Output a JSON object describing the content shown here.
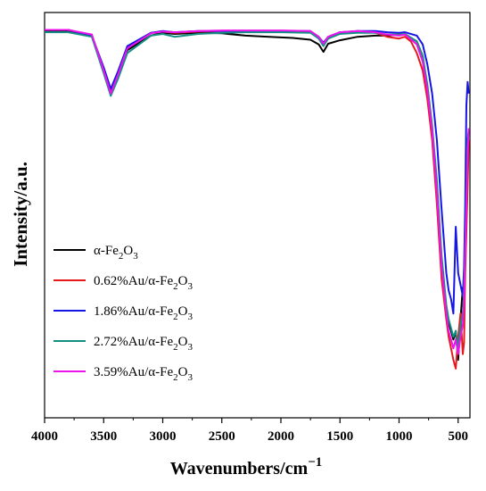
{
  "chart_data": {
    "type": "line",
    "xlabel": "Wavenumbers/cm",
    "xlabel_superscript": "−1",
    "ylabel": "Intensity/a.u.",
    "xlim": [
      4000,
      400
    ],
    "x_reversed": true,
    "x_ticks": [
      4000,
      3500,
      3000,
      2500,
      2000,
      1500,
      1000,
      500
    ],
    "y_ticks_shown": false,
    "grid": false,
    "legend_position": "center-left",
    "series": [
      {
        "label_main": "α-Fe",
        "label_sub1": "2",
        "label_mid": "O",
        "label_sub2": "3",
        "color": "#000000",
        "points": [
          [
            4000,
            96.8
          ],
          [
            3800,
            96.8
          ],
          [
            3600,
            96.0
          ],
          [
            3500,
            90.0
          ],
          [
            3440,
            86.2
          ],
          [
            3380,
            89.0
          ],
          [
            3300,
            93.5
          ],
          [
            3100,
            96.0
          ],
          [
            3000,
            96.5
          ],
          [
            2900,
            96.3
          ],
          [
            2700,
            96.5
          ],
          [
            2500,
            96.4
          ],
          [
            2300,
            96.0
          ],
          [
            2100,
            95.8
          ],
          [
            1900,
            95.6
          ],
          [
            1750,
            95.3
          ],
          [
            1680,
            94.5
          ],
          [
            1640,
            93.2
          ],
          [
            1600,
            94.6
          ],
          [
            1500,
            95.2
          ],
          [
            1350,
            95.8
          ],
          [
            1200,
            96.0
          ],
          [
            1100,
            96.0
          ],
          [
            1000,
            96.2
          ],
          [
            950,
            96.2
          ],
          [
            850,
            95.0
          ],
          [
            800,
            92.5
          ],
          [
            760,
            87.0
          ],
          [
            720,
            80.0
          ],
          [
            680,
            70.0
          ],
          [
            640,
            57.0
          ],
          [
            600,
            49.0
          ],
          [
            580,
            46.5
          ],
          [
            560,
            45.0
          ],
          [
            540,
            43.5
          ],
          [
            520,
            45.0
          ],
          [
            500,
            40.0
          ],
          [
            480,
            47.0
          ],
          [
            460,
            52.5
          ],
          [
            450,
            50.0
          ],
          [
            440,
            58.0
          ],
          [
            420,
            75.0
          ],
          [
            410,
            78.0
          ]
        ]
      },
      {
        "label_main": "0.62%Au/α-Fe",
        "label_sub1": "2",
        "label_mid": "O",
        "label_sub2": "3",
        "color": "#e8191c",
        "points": [
          [
            4000,
            97.0
          ],
          [
            3800,
            97.0
          ],
          [
            3600,
            96.0
          ],
          [
            3500,
            90.0
          ],
          [
            3440,
            86.5
          ],
          [
            3380,
            89.5
          ],
          [
            3300,
            94.0
          ],
          [
            3100,
            96.5
          ],
          [
            3000,
            96.7
          ],
          [
            2900,
            96.5
          ],
          [
            2700,
            96.7
          ],
          [
            2500,
            96.8
          ],
          [
            2300,
            96.8
          ],
          [
            2000,
            96.8
          ],
          [
            1750,
            96.7
          ],
          [
            1680,
            95.5
          ],
          [
            1640,
            94.5
          ],
          [
            1600,
            95.5
          ],
          [
            1500,
            96.5
          ],
          [
            1350,
            96.8
          ],
          [
            1200,
            96.5
          ],
          [
            1100,
            95.8
          ],
          [
            1000,
            95.5
          ],
          [
            950,
            95.8
          ],
          [
            900,
            95.0
          ],
          [
            850,
            93.0
          ],
          [
            800,
            90.0
          ],
          [
            760,
            85.0
          ],
          [
            720,
            78.0
          ],
          [
            680,
            67.0
          ],
          [
            640,
            54.0
          ],
          [
            600,
            47.0
          ],
          [
            580,
            44.0
          ],
          [
            560,
            42.0
          ],
          [
            540,
            40.0
          ],
          [
            520,
            38.5
          ],
          [
            500,
            44.0
          ],
          [
            480,
            48.0
          ],
          [
            460,
            41.0
          ],
          [
            450,
            43.0
          ],
          [
            440,
            55.0
          ],
          [
            420,
            70.0
          ],
          [
            410,
            78.0
          ]
        ]
      },
      {
        "label_main": "1.86%Au/α-Fe",
        "label_sub1": "2",
        "label_mid": "O",
        "label_sub2": "3",
        "color": "#1515e6",
        "points": [
          [
            4000,
            97.0
          ],
          [
            3800,
            97.0
          ],
          [
            3600,
            96.0
          ],
          [
            3500,
            90.5
          ],
          [
            3440,
            86.8
          ],
          [
            3380,
            89.8
          ],
          [
            3300,
            94.2
          ],
          [
            3100,
            96.5
          ],
          [
            3000,
            96.8
          ],
          [
            2900,
            96.6
          ],
          [
            2700,
            96.8
          ],
          [
            2500,
            96.8
          ],
          [
            2300,
            96.8
          ],
          [
            2000,
            96.8
          ],
          [
            1750,
            96.8
          ],
          [
            1680,
            95.8
          ],
          [
            1640,
            94.8
          ],
          [
            1600,
            95.8
          ],
          [
            1500,
            96.6
          ],
          [
            1350,
            96.8
          ],
          [
            1200,
            96.8
          ],
          [
            1100,
            96.6
          ],
          [
            1000,
            96.5
          ],
          [
            950,
            96.6
          ],
          [
            850,
            96.0
          ],
          [
            800,
            94.5
          ],
          [
            760,
            91.0
          ],
          [
            720,
            86.0
          ],
          [
            680,
            78.0
          ],
          [
            640,
            66.0
          ],
          [
            600,
            55.0
          ],
          [
            580,
            52.0
          ],
          [
            560,
            50.5
          ],
          [
            540,
            48.0
          ],
          [
            520,
            63.0
          ],
          [
            500,
            55.0
          ],
          [
            480,
            53.0
          ],
          [
            460,
            51.0
          ],
          [
            450,
            56.0
          ],
          [
            440,
            67.0
          ],
          [
            430,
            84.0
          ],
          [
            420,
            88.0
          ],
          [
            410,
            86.0
          ]
        ]
      },
      {
        "label_main": "2.72%Au/α-Fe",
        "label_sub1": "2",
        "label_mid": "O",
        "label_sub2": "3",
        "color": "#148f85",
        "points": [
          [
            4000,
            96.6
          ],
          [
            3800,
            96.6
          ],
          [
            3600,
            95.8
          ],
          [
            3500,
            89.5
          ],
          [
            3440,
            85.6
          ],
          [
            3380,
            88.5
          ],
          [
            3300,
            93.0
          ],
          [
            3100,
            96.0
          ],
          [
            3000,
            96.3
          ],
          [
            2900,
            95.8
          ],
          [
            2700,
            96.3
          ],
          [
            2500,
            96.5
          ],
          [
            2300,
            96.6
          ],
          [
            2000,
            96.6
          ],
          [
            1750,
            96.5
          ],
          [
            1680,
            95.5
          ],
          [
            1640,
            94.2
          ],
          [
            1600,
            95.5
          ],
          [
            1500,
            96.3
          ],
          [
            1350,
            96.5
          ],
          [
            1200,
            96.5
          ],
          [
            1100,
            96.2
          ],
          [
            1000,
            96.2
          ],
          [
            950,
            96.3
          ],
          [
            850,
            95.0
          ],
          [
            800,
            92.5
          ],
          [
            760,
            87.5
          ],
          [
            720,
            80.5
          ],
          [
            680,
            71.0
          ],
          [
            640,
            58.0
          ],
          [
            600,
            49.5
          ],
          [
            580,
            47.0
          ],
          [
            560,
            45.5
          ],
          [
            540,
            44.0
          ],
          [
            520,
            45.0
          ],
          [
            500,
            42.0
          ],
          [
            480,
            46.0
          ],
          [
            460,
            48.0
          ],
          [
            450,
            52.0
          ],
          [
            440,
            60.0
          ],
          [
            420,
            78.0
          ],
          [
            410,
            80.0
          ]
        ]
      },
      {
        "label_main": "3.59%Au/α-Fe",
        "label_sub1": "2",
        "label_mid": "O",
        "label_sub2": "3",
        "color": "#ec14ec",
        "points": [
          [
            4000,
            97.0
          ],
          [
            3800,
            97.0
          ],
          [
            3600,
            96.2
          ],
          [
            3500,
            90.0
          ],
          [
            3440,
            86.0
          ],
          [
            3380,
            89.2
          ],
          [
            3300,
            93.8
          ],
          [
            3100,
            96.4
          ],
          [
            3000,
            96.7
          ],
          [
            2900,
            96.6
          ],
          [
            2700,
            96.8
          ],
          [
            2500,
            96.9
          ],
          [
            2300,
            96.9
          ],
          [
            2000,
            96.9
          ],
          [
            1750,
            96.8
          ],
          [
            1680,
            95.8
          ],
          [
            1640,
            94.6
          ],
          [
            1600,
            95.8
          ],
          [
            1500,
            96.6
          ],
          [
            1350,
            96.8
          ],
          [
            1200,
            96.6
          ],
          [
            1100,
            96.2
          ],
          [
            1000,
            96.0
          ],
          [
            950,
            96.2
          ],
          [
            850,
            94.5
          ],
          [
            800,
            91.5
          ],
          [
            760,
            86.5
          ],
          [
            720,
            79.5
          ],
          [
            680,
            69.0
          ],
          [
            640,
            56.0
          ],
          [
            600,
            48.0
          ],
          [
            580,
            45.0
          ],
          [
            560,
            43.5
          ],
          [
            540,
            42.0
          ],
          [
            520,
            43.5
          ],
          [
            500,
            41.0
          ],
          [
            480,
            44.0
          ],
          [
            460,
            46.0
          ],
          [
            450,
            50.0
          ],
          [
            440,
            58.0
          ],
          [
            420,
            76.0
          ],
          [
            410,
            80.0
          ]
        ]
      }
    ]
  }
}
